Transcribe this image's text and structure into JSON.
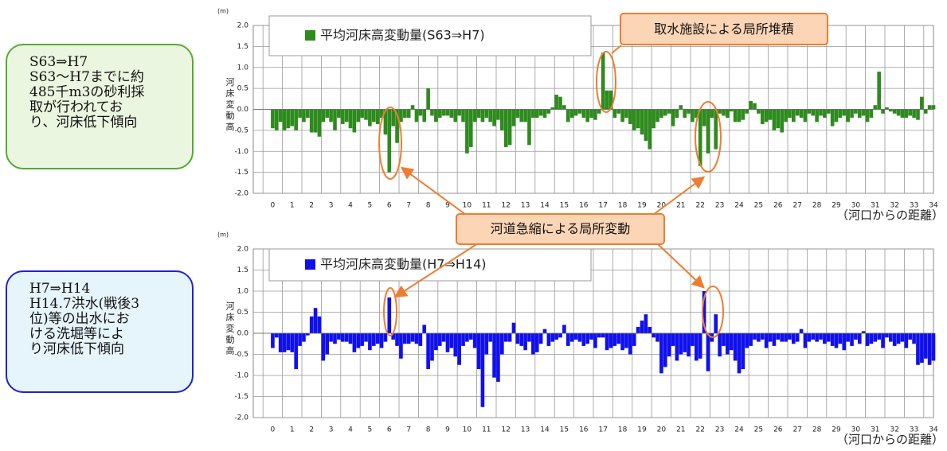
{
  "chart_data": [
    {
      "type": "bar",
      "y_unit": "(m)",
      "ylabel": "河床変動高",
      "xlabel": "（河口からの距離）",
      "xlim": [
        -1,
        34
      ],
      "xticks": [
        0,
        1,
        2,
        3,
        4,
        5,
        6,
        7,
        8,
        9,
        10,
        11,
        12,
        13,
        14,
        15,
        16,
        17,
        18,
        19,
        20,
        21,
        22,
        23,
        24,
        25,
        26,
        27,
        28,
        29,
        30,
        31,
        32,
        33,
        34
      ],
      "ylim": [
        -2,
        2
      ],
      "yticks": [
        {
          "value": 2,
          "label": "2.0"
        },
        1.5,
        {
          "value": 1,
          "label": "1.0"
        },
        0.5,
        {
          "value": 0,
          "label": "0.0"
        },
        -0.5,
        {
          "value": -1,
          "label": "-1.0"
        },
        -1.5,
        {
          "value": -2,
          "label": "-2.0"
        }
      ],
      "grid": true,
      "x": [
        0,
        0.2,
        0.4,
        0.6,
        0.8,
        1,
        1.2,
        1.4,
        1.6,
        1.8,
        2,
        2.2,
        2.4,
        2.6,
        2.8,
        3,
        3.2,
        3.4,
        3.6,
        3.8,
        4,
        4.2,
        4.4,
        4.6,
        4.8,
        5,
        5.2,
        5.4,
        5.6,
        5.8,
        6,
        6.2,
        6.4,
        6.6,
        6.8,
        7,
        7.2,
        7.4,
        7.6,
        7.8,
        8,
        8.2,
        8.4,
        8.6,
        8.8,
        9,
        9.2,
        9.4,
        9.6,
        9.8,
        10,
        10.2,
        10.4,
        10.6,
        10.8,
        11,
        11.2,
        11.4,
        11.6,
        11.8,
        12,
        12.2,
        12.4,
        12.6,
        12.8,
        13,
        13.2,
        13.4,
        13.6,
        13.8,
        14,
        14.2,
        14.4,
        14.6,
        14.8,
        15,
        15.2,
        15.4,
        15.6,
        15.8,
        16,
        16.2,
        16.4,
        16.6,
        16.8,
        17,
        17.2,
        17.4,
        17.6,
        17.8,
        18,
        18.2,
        18.4,
        18.6,
        18.8,
        19,
        19.2,
        19.4,
        19.6,
        19.8,
        20,
        20.2,
        20.4,
        20.6,
        20.8,
        21,
        21.2,
        21.4,
        21.6,
        21.8,
        22,
        22.2,
        22.4,
        22.6,
        22.8,
        23,
        23.2,
        23.4,
        23.6,
        23.8,
        24,
        24.2,
        24.4,
        24.6,
        24.8,
        25,
        25.2,
        25.4,
        25.6,
        25.8,
        26,
        26.2,
        26.4,
        26.6,
        26.8,
        27,
        27.2,
        27.4,
        27.6,
        27.8,
        28,
        28.2,
        28.4,
        28.6,
        28.8,
        29,
        29.2,
        29.4,
        29.6,
        29.8,
        30,
        30.2,
        30.4,
        30.6,
        30.8,
        31,
        31.2,
        31.4,
        31.6,
        31.8,
        32,
        32.2,
        32.4,
        32.6,
        32.8,
        33,
        33.2,
        33.4,
        33.6,
        33.8,
        34
      ],
      "series": [
        {
          "name": "平均河床高変動量(S63⇒H7)",
          "color": "#2e8b1e",
          "values": [
            -0.45,
            -0.5,
            -0.3,
            -0.5,
            -0.45,
            -0.4,
            -0.5,
            -0.2,
            -0.3,
            -0.2,
            -0.55,
            -0.55,
            -0.65,
            -0.3,
            -0.2,
            -0.3,
            -0.5,
            -0.2,
            -0.35,
            -0.3,
            -0.45,
            -0.55,
            -0.3,
            -0.2,
            -0.25,
            -0.4,
            -0.3,
            -0.35,
            -0.2,
            -0.6,
            -1.5,
            -0.4,
            -0.8,
            -0.3,
            -0.2,
            -0.2,
            0.1,
            -0.3,
            -0.15,
            -0.3,
            0.5,
            -0.15,
            -0.3,
            -0.2,
            -0.15,
            -0.15,
            -0.2,
            -0.3,
            -0.15,
            -0.3,
            -1.05,
            -0.9,
            -0.3,
            -0.2,
            -0.3,
            -0.2,
            -0.3,
            -0.4,
            -0.25,
            -0.5,
            -0.9,
            -0.85,
            -0.4,
            -0.2,
            -0.3,
            -0.3,
            -0.85,
            -0.2,
            -0.2,
            -0.15,
            -0.2,
            -0.1,
            0.05,
            0.35,
            0.3,
            0.1,
            -0.3,
            -0.2,
            -0.15,
            -0.1,
            -0.2,
            -0.3,
            -0.2,
            -0.25,
            -0.1,
            1.35,
            0.45,
            0.45,
            -0.2,
            -0.1,
            -0.3,
            -0.2,
            -0.35,
            -0.5,
            -0.45,
            -0.6,
            -0.75,
            -0.95,
            -0.45,
            -0.3,
            -0.2,
            -0.15,
            -0.1,
            -0.4,
            -0.2,
            0.1,
            -0.2,
            -0.1,
            -0.3,
            -0.2,
            -1.35,
            -0.4,
            -1.05,
            -0.2,
            -0.95,
            -0.1,
            -0.15,
            -0.2,
            -0.05,
            -0.3,
            -0.3,
            -0.25,
            -0.1,
            0.2,
            0.15,
            -0.1,
            -0.35,
            -0.3,
            -0.25,
            -0.5,
            -0.45,
            -0.55,
            -0.3,
            -0.2,
            -0.3,
            -0.15,
            -0.2,
            -0.3,
            -0.1,
            -0.15,
            -0.3,
            -0.15,
            -0.2,
            -0.1,
            -0.4,
            -0.3,
            -0.2,
            -0.15,
            -0.3,
            -0.2,
            -0.1,
            -0.2,
            -0.15,
            -0.3,
            -0.2,
            0.1,
            0.9,
            -0.1,
            0.05,
            -0.05,
            -0.1,
            -0.15,
            -0.2,
            -0.2,
            -0.15,
            -0.2,
            -0.25,
            0.3,
            -0.1,
            0.1,
            0.1
          ]
        }
      ]
    },
    {
      "type": "bar",
      "y_unit": "(m)",
      "ylabel": "河床変動高",
      "xlabel": "（河口からの距離）",
      "xlim": [
        -1,
        34
      ],
      "xticks": [
        0,
        1,
        2,
        3,
        4,
        5,
        6,
        7,
        8,
        9,
        10,
        11,
        12,
        13,
        14,
        15,
        16,
        17,
        18,
        19,
        20,
        21,
        22,
        23,
        24,
        25,
        26,
        27,
        28,
        29,
        30,
        31,
        32,
        33,
        34
      ],
      "ylim": [
        -2,
        2
      ],
      "yticks": [
        {
          "value": 2,
          "label": "2.0"
        },
        1.5,
        {
          "value": 1,
          "label": "1.0"
        },
        0.5,
        {
          "value": 0,
          "label": "0.0"
        },
        -0.5,
        {
          "value": -1,
          "label": "-1.0"
        },
        -1.5,
        {
          "value": -2,
          "label": "-2.0"
        }
      ],
      "grid": true,
      "x": [
        0,
        0.2,
        0.4,
        0.6,
        0.8,
        1,
        1.2,
        1.4,
        1.6,
        1.8,
        2,
        2.2,
        2.4,
        2.6,
        2.8,
        3,
        3.2,
        3.4,
        3.6,
        3.8,
        4,
        4.2,
        4.4,
        4.6,
        4.8,
        5,
        5.2,
        5.4,
        5.6,
        5.8,
        6,
        6.2,
        6.4,
        6.6,
        6.8,
        7,
        7.2,
        7.4,
        7.6,
        7.8,
        8,
        8.2,
        8.4,
        8.6,
        8.8,
        9,
        9.2,
        9.4,
        9.6,
        9.8,
        10,
        10.2,
        10.4,
        10.6,
        10.8,
        11,
        11.2,
        11.4,
        11.6,
        11.8,
        12,
        12.2,
        12.4,
        12.6,
        12.8,
        13,
        13.2,
        13.4,
        13.6,
        13.8,
        14,
        14.2,
        14.4,
        14.6,
        14.8,
        15,
        15.2,
        15.4,
        15.6,
        15.8,
        16,
        16.2,
        16.4,
        16.6,
        16.8,
        17,
        17.2,
        17.4,
        17.6,
        17.8,
        18,
        18.2,
        18.4,
        18.6,
        18.8,
        19,
        19.2,
        19.4,
        19.6,
        19.8,
        20,
        20.2,
        20.4,
        20.6,
        20.8,
        21,
        21.2,
        21.4,
        21.6,
        21.8,
        22,
        22.2,
        22.4,
        22.6,
        22.8,
        23,
        23.2,
        23.4,
        23.6,
        23.8,
        24,
        24.2,
        24.4,
        24.6,
        24.8,
        25,
        25.2,
        25.4,
        25.6,
        25.8,
        26,
        26.2,
        26.4,
        26.6,
        26.8,
        27,
        27.2,
        27.4,
        27.6,
        27.8,
        28,
        28.2,
        28.4,
        28.6,
        28.8,
        29,
        29.2,
        29.4,
        29.6,
        29.8,
        30,
        30.2,
        30.4,
        30.6,
        30.8,
        31,
        31.2,
        31.4,
        31.6,
        31.8,
        32,
        32.2,
        32.4,
        32.6,
        32.8,
        33,
        33.2,
        33.4,
        33.6,
        33.8,
        34
      ],
      "series": [
        {
          "name": "平均河床高変動量(H7⇒H14)",
          "color": "#1010ee",
          "values": [
            -0.35,
            -0.1,
            -0.45,
            -0.45,
            -0.4,
            -0.45,
            -0.85,
            -0.3,
            -0.2,
            -0.05,
            0.4,
            0.6,
            0.4,
            -0.65,
            -0.5,
            -0.2,
            -0.25,
            -0.15,
            -0.2,
            -0.2,
            -0.25,
            -0.45,
            -0.35,
            -0.3,
            -0.2,
            -0.4,
            -0.3,
            -0.25,
            -0.35,
            -0.2,
            0.85,
            -0.15,
            -0.3,
            -0.6,
            -0.25,
            -0.25,
            -0.2,
            -0.25,
            -0.3,
            0.2,
            -0.85,
            -0.65,
            -0.4,
            -0.3,
            -0.2,
            -0.45,
            -0.35,
            -0.55,
            -0.75,
            -0.3,
            -0.2,
            -0.15,
            -0.35,
            -0.85,
            -1.75,
            -0.5,
            -0.2,
            -1.05,
            -1.15,
            -0.5,
            -0.2,
            -0.2,
            0.25,
            -0.25,
            -0.3,
            -0.4,
            -0.2,
            -0.5,
            -0.45,
            -0.25,
            0.1,
            -0.3,
            -0.2,
            -0.15,
            -0.1,
            0.2,
            -0.3,
            -0.2,
            -0.15,
            -0.2,
            -0.3,
            -0.25,
            -0.15,
            -0.35,
            -0.1,
            -0.1,
            -0.4,
            -0.35,
            -0.3,
            -0.25,
            -0.4,
            -0.35,
            -0.5,
            -0.3,
            0.15,
            0.3,
            0.45,
            0.15,
            -0.1,
            -0.2,
            -0.95,
            -0.8,
            -0.55,
            -0.3,
            -0.65,
            -0.5,
            -0.45,
            -0.55,
            -0.3,
            -0.65,
            -0.6,
            1.0,
            -0.9,
            -0.2,
            0.45,
            -0.55,
            -0.3,
            -0.5,
            -0.4,
            -0.65,
            -0.95,
            -0.85,
            -0.35,
            -0.3,
            -0.15,
            -0.2,
            -0.15,
            -0.35,
            -0.2,
            -0.3,
            -0.15,
            -0.2,
            -0.2,
            -0.15,
            -0.25,
            -0.2,
            0.1,
            -0.35,
            -0.2,
            -0.15,
            -0.2,
            -0.15,
            -0.25,
            -0.2,
            -0.3,
            -0.35,
            -0.25,
            -0.4,
            -0.2,
            -0.3,
            -0.15,
            -0.25,
            0.05,
            -0.3,
            -0.25,
            -0.2,
            -0.15,
            -0.35,
            -0.1,
            -0.2,
            -0.3,
            -0.25,
            -0.2,
            -0.35,
            -0.15,
            -0.25,
            -0.75,
            -0.7,
            -0.6,
            -0.75,
            -0.65
          ]
        }
      ]
    }
  ],
  "side_notes": [
    [
      "S63⇒H7",
      "S63～H7までに約",
      "485千m3の砂利採",
      "取が行われてお",
      "り、河床低下傾向"
    ],
    [
      "H7⇒H14",
      "H14.7洪水(戦後3",
      "位)等の出水にお",
      "ける洗堀等によ",
      "り河床低下傾向"
    ]
  ],
  "callouts": [
    "取水施設による局所堆積",
    "河道急縮による局所変動"
  ]
}
